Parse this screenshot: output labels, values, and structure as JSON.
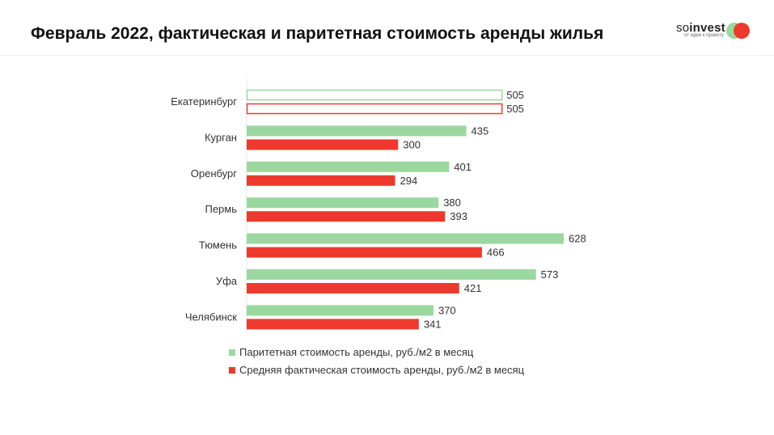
{
  "title": "Февраль 2022, фактическая и паритетная стоимость аренды жилья",
  "logo": {
    "name_light": "so",
    "name_bold": "invest",
    "tagline": "от идеи к проекту"
  },
  "chart_data": {
    "type": "bar",
    "orientation": "horizontal",
    "categories": [
      "Екатеринбург",
      "Курган",
      "Оренбург",
      "Пермь",
      "Тюмень",
      "Уфа",
      "Челябинск"
    ],
    "series": [
      {
        "name": "Паритетная стоимость аренды, руб./м2 в месяц",
        "color": "#9bd89f",
        "values": [
          505,
          435,
          401,
          380,
          628,
          573,
          370
        ]
      },
      {
        "name": "Средняя фактическая стоимость аренды, руб./м2 в месяц",
        "color": "#ee3a2e",
        "values": [
          505,
          300,
          294,
          393,
          466,
          421,
          341
        ]
      }
    ],
    "highlight": "Екатеринбург (outlined bars)",
    "xlim": [
      0,
      628
    ],
    "grid": false,
    "legend": "bottom"
  }
}
